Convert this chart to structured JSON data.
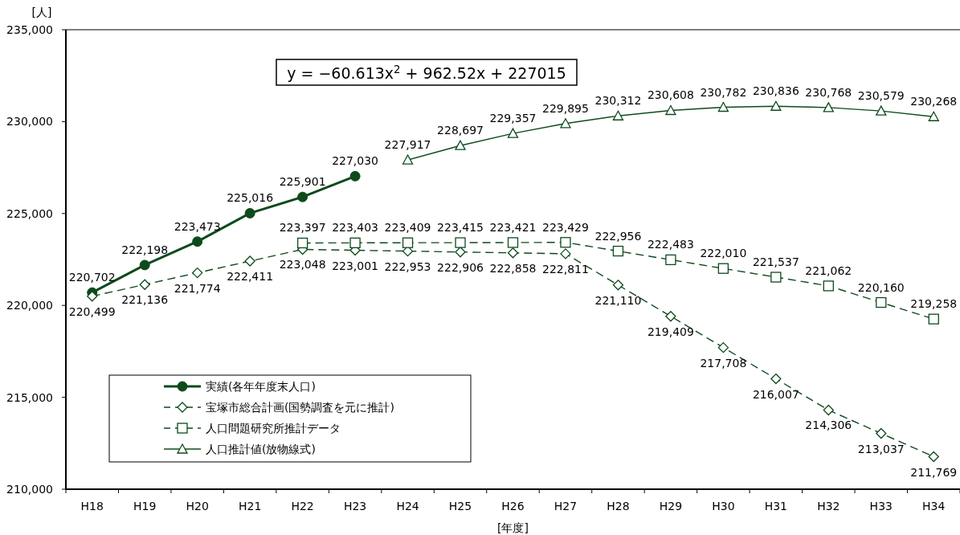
{
  "chart_data": {
    "type": "line",
    "categories": [
      "H18",
      "H19",
      "H20",
      "H21",
      "H22",
      "H23",
      "H24",
      "H25",
      "H26",
      "H27",
      "H28",
      "H29",
      "H30",
      "H31",
      "H32",
      "H33",
      "H34"
    ],
    "xlabel": "[年度]",
    "ylabel": "[人]",
    "ylim": [
      210000,
      235000
    ],
    "yticks": [
      {
        "value": 210000,
        "label": "210,000"
      },
      {
        "value": 215000,
        "label": "215,000"
      },
      {
        "value": 220000,
        "label": "220,000"
      },
      {
        "value": 225000,
        "label": "225,000"
      },
      {
        "value": 230000,
        "label": "230,000"
      },
      {
        "value": 235000,
        "label": "235,000"
      }
    ],
    "grid": false,
    "legend": "bottom left",
    "annotations": [
      "y = −60.613x$^{2}$ + 962.52x + 227015"
    ],
    "series": [
      {
        "name": "実績(各年年度末人口)",
        "color": "#0d4a1c",
        "marker": "circle",
        "line_style": "solid",
        "values": [
          220702,
          222198,
          223473,
          225016,
          225901,
          227030,
          null,
          null,
          null,
          null,
          null,
          null,
          null,
          null,
          null,
          null,
          null
        ],
        "value_labels": [
          "220,702",
          "222,198",
          "223,473",
          "225,016",
          "225,901",
          "227,030",
          null,
          null,
          null,
          null,
          null,
          null,
          null,
          null,
          null,
          null,
          null
        ]
      },
      {
        "name": "宝塚市総合計画(国勢調査を元に推計)",
        "color": "#0d4a1c",
        "marker": "diamond",
        "line_style": "dashed",
        "values": [
          220499,
          221136,
          221774,
          222411,
          223048,
          223001,
          222953,
          222906,
          222858,
          222811,
          221110,
          219409,
          217708,
          216007,
          214306,
          213037,
          211769
        ],
        "value_labels": [
          "220,499",
          "221,136",
          "221,774",
          "222,411",
          "223,048",
          "223,001",
          "222,953",
          "222,906",
          "222,858",
          "222,811",
          "221,110",
          "219,409",
          "217,708",
          "216,007",
          "214,306",
          "213,037",
          "211,769"
        ]
      },
      {
        "name": "人口問題研究所推計データ",
        "color": "#0d4a1c",
        "marker": "square",
        "line_style": "dashed",
        "values": [
          null,
          null,
          null,
          null,
          223397,
          223403,
          223409,
          223415,
          223421,
          223429,
          222956,
          222483,
          222010,
          221537,
          221062,
          220160,
          219258
        ],
        "value_labels": [
          null,
          null,
          null,
          null,
          "223,397",
          "223,403",
          "223,409",
          "223,415",
          "223,421",
          "223,429",
          "222,956",
          "222,483",
          "222,010",
          "221,537",
          "221,062",
          "220,160",
          "219,258"
        ]
      },
      {
        "name": "人口推計値(放物線式)",
        "color": "#0d4a1c",
        "marker": "triangle",
        "line_style": "solid",
        "values": [
          null,
          null,
          null,
          null,
          null,
          null,
          227917,
          228697,
          229357,
          229895,
          230312,
          230608,
          230782,
          230836,
          230768,
          230579,
          230268
        ],
        "value_labels": [
          null,
          null,
          null,
          null,
          null,
          null,
          "227,917",
          "228,697",
          "229,357",
          "229,895",
          "230,312",
          "230,608",
          "230,782",
          "230,836",
          "230,768",
          "230,579",
          "230,268"
        ]
      }
    ]
  }
}
